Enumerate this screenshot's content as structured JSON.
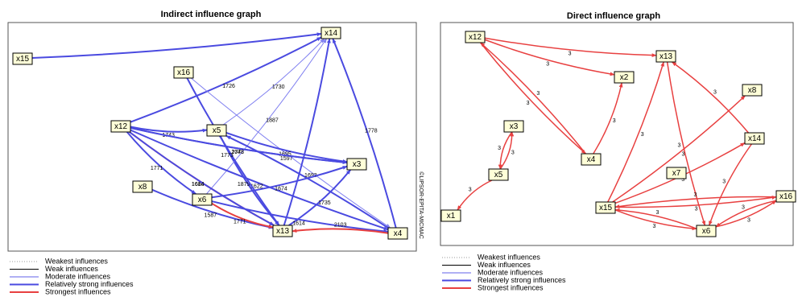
{
  "left": {
    "title": "Indirect influence graph",
    "watermark": "©LIPSOR-EPITA-MICMAC",
    "nodes": [
      "x14",
      "x15",
      "x16",
      "x12",
      "x5",
      "x3",
      "x8",
      "x6",
      "x13",
      "x4"
    ],
    "edges": [
      {
        "from": "x15",
        "to": "x14",
        "color": "#4a4ae0",
        "width": 2
      },
      {
        "from": "x12",
        "to": "x14",
        "label": 1726,
        "color": "#4a4ae0",
        "width": 2
      },
      {
        "from": "x16",
        "to": "x4",
        "label": 1597,
        "color": "#8080f0",
        "width": 1
      },
      {
        "from": "x12",
        "to": "x5",
        "label": 1743,
        "color": "#4a4ae0",
        "width": 2
      },
      {
        "from": "x5",
        "to": "x14",
        "label": 1730,
        "color": "#8080f0",
        "width": 1
      },
      {
        "from": "x4",
        "to": "x14",
        "label": 1778,
        "color": "#4a4ae0",
        "width": 2
      },
      {
        "from": "x12",
        "to": "x3",
        "label": 1743,
        "color": "#4a4ae0",
        "width": 2
      },
      {
        "from": "x5",
        "to": "x3",
        "label": 1695,
        "color": "#4a4ae0",
        "width": 2
      },
      {
        "from": "x5",
        "to": "x13",
        "label": 1879,
        "color": "#4a4ae0",
        "width": 2
      },
      {
        "from": "x6",
        "to": "x14",
        "label": 1887,
        "color": "#8080f0",
        "width": 1
      },
      {
        "from": "x12",
        "to": "x6",
        "label": 1771,
        "color": "#4a4ae0",
        "width": 2
      },
      {
        "from": "x12",
        "to": "x13",
        "label": 1680,
        "color": "#e84040",
        "width": 2
      },
      {
        "from": "x12",
        "to": "x4",
        "label": 1622,
        "color": "#4a4ae0",
        "width": 2
      },
      {
        "from": "x4",
        "to": "x5",
        "label": 1693,
        "color": "#4a4ae0",
        "width": 2
      },
      {
        "from": "x8",
        "to": "x13",
        "label": 1587,
        "color": "#4a4ae0",
        "width": 2
      },
      {
        "from": "x12",
        "to": "x3",
        "label": 2078,
        "color": "#4a4ae0",
        "width": 2
      },
      {
        "from": "x13",
        "to": "x3",
        "label": 1735,
        "color": "#4a4ae0",
        "width": 2
      },
      {
        "from": "x6",
        "to": "x4",
        "label": 1614,
        "color": "#4a4ae0",
        "width": 2
      },
      {
        "from": "x16",
        "to": "x13",
        "label": 1773,
        "color": "#4a4ae0",
        "width": 2
      },
      {
        "from": "x6",
        "to": "x13",
        "label": 1771,
        "color": "#e84040",
        "width": 2
      },
      {
        "from": "x12",
        "to": "x13",
        "label": 1614,
        "color": "#4a4ae0",
        "width": 2
      },
      {
        "from": "x6",
        "to": "x3",
        "label": 1674,
        "color": "#4a4ae0",
        "width": 2
      },
      {
        "from": "x13",
        "to": "x14",
        "color": "#4a4ae0",
        "width": 2
      },
      {
        "from": "x4",
        "to": "x13",
        "label": 2103,
        "color": "#e84040",
        "width": 2
      }
    ],
    "legend": [
      {
        "label": "Weakest influences",
        "color": "#999",
        "style": "dotted",
        "width": 1
      },
      {
        "label": "Weak influences",
        "color": "#000",
        "style": "solid",
        "width": 1
      },
      {
        "label": "Moderate influences",
        "color": "#6060e8",
        "style": "solid",
        "width": 1
      },
      {
        "label": "Relatively strong influences",
        "color": "#4a4ae0",
        "style": "solid",
        "width": 2
      },
      {
        "label": "Strongest influences",
        "color": "#e84040",
        "style": "solid",
        "width": 2
      }
    ]
  },
  "right": {
    "title": "Direct influence graph",
    "nodes": [
      "x12",
      "x13",
      "x2",
      "x8",
      "x3",
      "x4",
      "x14",
      "x5",
      "x7",
      "x16",
      "x15",
      "x1",
      "x6"
    ],
    "edges": [
      {
        "from": "x12",
        "to": "x13",
        "label": 3,
        "color": "#e84040",
        "width": 1.5
      },
      {
        "from": "x12",
        "to": "x2",
        "label": 3,
        "color": "#e84040",
        "width": 1.5
      },
      {
        "from": "x12",
        "to": "x4",
        "label": 3,
        "color": "#e84040",
        "width": 1.5
      },
      {
        "from": "x4",
        "to": "x12",
        "label": 3,
        "color": "#e84040",
        "width": 1.5
      },
      {
        "from": "x4",
        "to": "x2",
        "label": 3,
        "color": "#e84040",
        "width": 1.5
      },
      {
        "from": "x3",
        "to": "x5",
        "label": 3,
        "color": "#e84040",
        "width": 1.5
      },
      {
        "from": "x5",
        "to": "x3",
        "label": 3,
        "color": "#e84040",
        "width": 1.5
      },
      {
        "from": "x5",
        "to": "x1",
        "label": 3,
        "color": "#e84040",
        "width": 1.5
      },
      {
        "from": "x15",
        "to": "x13",
        "label": 3,
        "color": "#e84040",
        "width": 1.5
      },
      {
        "from": "x13",
        "to": "x6",
        "label": 3,
        "color": "#e84040",
        "width": 1.5
      },
      {
        "from": "x14",
        "to": "x13",
        "label": 3,
        "color": "#e84040",
        "width": 1.5
      },
      {
        "from": "x15",
        "to": "x14",
        "label": 3,
        "color": "#e84040",
        "width": 1.5
      },
      {
        "from": "x15",
        "to": "x8",
        "label": 3,
        "color": "#e84040",
        "width": 1.5
      },
      {
        "from": "x14",
        "to": "x6",
        "label": 3,
        "color": "#e84040",
        "width": 1.5
      },
      {
        "from": "x15",
        "to": "x16",
        "label": 3,
        "color": "#e84040",
        "width": 1.5
      },
      {
        "from": "x16",
        "to": "x15",
        "label": 3,
        "color": "#e84040",
        "width": 1.5
      },
      {
        "from": "x15",
        "to": "x6",
        "label": 3,
        "color": "#e84040",
        "width": 1.5
      },
      {
        "from": "x6",
        "to": "x15",
        "label": 3,
        "color": "#e84040",
        "width": 1.5
      },
      {
        "from": "x16",
        "to": "x6",
        "label": 3,
        "color": "#e84040",
        "width": 1.5
      },
      {
        "from": "x6",
        "to": "x16",
        "label": 3,
        "color": "#e84040",
        "width": 1.5
      }
    ],
    "legend": [
      {
        "label": "Weakest influences",
        "color": "#999",
        "style": "dotted",
        "width": 1
      },
      {
        "label": "Weak influences",
        "color": "#000",
        "style": "solid",
        "width": 1
      },
      {
        "label": "Moderate influences",
        "color": "#6060e8",
        "style": "solid",
        "width": 1
      },
      {
        "label": "Relatively strong influences",
        "color": "#4a4ae0",
        "style": "solid",
        "width": 2
      },
      {
        "label": "Strongest influences",
        "color": "#e84040",
        "style": "solid",
        "width": 2
      }
    ]
  }
}
